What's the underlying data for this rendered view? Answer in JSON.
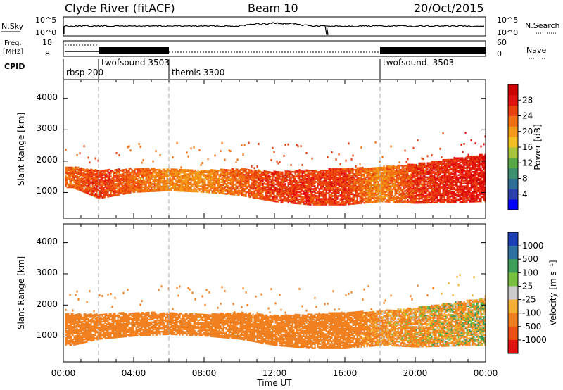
{
  "header": {
    "station": "Clyde River (fitACF)",
    "beam": "Beam 10",
    "date": "20/Oct/2015"
  },
  "strips": {
    "nsky_label": "N.Sky",
    "nsearch_label": "N.Search",
    "nsky_ticks": [
      "10^5",
      "10^0"
    ],
    "nsearch_ticks": [
      "10^5",
      "10^0"
    ],
    "freq_label_1": "Freq.",
    "freq_label_2": "[MHz]",
    "freq_ticks": [
      "18",
      "8"
    ],
    "nave_label": "Nave",
    "nave_ticks": [
      "60",
      "0"
    ],
    "cpid_label": "CPID",
    "cpid_modes": [
      {
        "label": "rbsp 200",
        "start_hour": 0
      },
      {
        "label": "twofsound 3503",
        "start_hour": 1.9
      },
      {
        "label": "themis 3300",
        "start_hour": 6.0
      },
      {
        "label": "twofsound -3503",
        "start_hour": 18.0
      }
    ]
  },
  "power_panel": {
    "ylabel": "Slant Range [km]",
    "yticks": [
      "1000",
      "2000",
      "3000",
      "4000"
    ],
    "colorbar_label": "Power [dB]",
    "colorbar_ticks": [
      "4",
      "8",
      "12",
      "16",
      "20",
      "24",
      "28"
    ],
    "colorbar_colors": [
      "#0000ff",
      "#2b3fb0",
      "#2f6c95",
      "#3e8f6f",
      "#5aa84a",
      "#a8c43a",
      "#f0c020",
      "#f39a18",
      "#f07012",
      "#ea4010",
      "#e01010",
      "#cc0000"
    ]
  },
  "velocity_panel": {
    "ylabel": "Slant Range [km]",
    "yticks": [
      "1000",
      "2000",
      "3000",
      "4000"
    ],
    "colorbar_label": "Velocity [m s⁻¹]",
    "colorbar_ticks": [
      "1000",
      "500",
      "100",
      "25",
      "-25",
      "-100",
      "-500",
      "-1000"
    ],
    "colorbar_colors": [
      "#1d3fb5",
      "#2f70a0",
      "#3f9d5a",
      "#7ac143",
      "#cccccc",
      "#f4b030",
      "#f08020",
      "#ee5010",
      "#e01010"
    ]
  },
  "x_axis": {
    "label": "Time UT",
    "ticks": [
      "00:00",
      "04:00",
      "08:00",
      "12:00",
      "16:00",
      "20:00",
      "00:00"
    ]
  },
  "chart_data": [
    {
      "type": "heatmap",
      "title": "",
      "xlabel": "Time UT",
      "ylabel": "Slant Range [km]",
      "xlim": [
        0,
        24
      ],
      "ylim": [
        180,
        4600
      ],
      "z_label": "Power [dB]",
      "z_range": [
        0,
        30
      ],
      "main_band": [
        {
          "t": 0.5,
          "lo": 1150,
          "hi": 1800,
          "z": 22
        },
        {
          "t": 2.0,
          "lo": 800,
          "hi": 1700,
          "z": 24
        },
        {
          "t": 4.0,
          "lo": 1000,
          "hi": 1750,
          "z": 22
        },
        {
          "t": 6.0,
          "lo": 1050,
          "hi": 1750,
          "z": 20
        },
        {
          "t": 8.0,
          "lo": 1000,
          "hi": 1700,
          "z": 20
        },
        {
          "t": 10.0,
          "lo": 900,
          "hi": 1750,
          "z": 22
        },
        {
          "t": 12.0,
          "lo": 700,
          "hi": 1650,
          "z": 24
        },
        {
          "t": 14.0,
          "lo": 600,
          "hi": 1700,
          "z": 24
        },
        {
          "t": 16.0,
          "lo": 600,
          "hi": 1750,
          "z": 24
        },
        {
          "t": 18.0,
          "lo": 700,
          "hi": 1800,
          "z": 20
        },
        {
          "t": 20.0,
          "lo": 650,
          "hi": 1900,
          "z": 24
        },
        {
          "t": 23.8,
          "lo": 700,
          "hi": 2200,
          "z": 26
        }
      ]
    },
    {
      "type": "heatmap",
      "title": "",
      "xlabel": "Time UT",
      "ylabel": "Slant Range [km]",
      "xlim": [
        0,
        24
      ],
      "ylim": [
        180,
        4600
      ],
      "z_label": "Velocity [m s⁻¹]",
      "z_range": [
        -1000,
        1000
      ],
      "main_band": [
        {
          "t": 0.5,
          "lo": 700,
          "hi": 1700,
          "z": -300
        },
        {
          "t": 2.0,
          "lo": 900,
          "hi": 1700,
          "z": -300
        },
        {
          "t": 4.0,
          "lo": 1000,
          "hi": 1750,
          "z": -300
        },
        {
          "t": 6.0,
          "lo": 1050,
          "hi": 1750,
          "z": -250
        },
        {
          "t": 8.0,
          "lo": 1000,
          "hi": 1700,
          "z": -250
        },
        {
          "t": 10.0,
          "lo": 900,
          "hi": 1750,
          "z": -300
        },
        {
          "t": 12.0,
          "lo": 700,
          "hi": 1650,
          "z": -350
        },
        {
          "t": 14.0,
          "lo": 600,
          "hi": 1700,
          "z": -300
        },
        {
          "t": 16.0,
          "lo": 600,
          "hi": 1750,
          "z": -300
        },
        {
          "t": 18.0,
          "lo": 700,
          "hi": 1800,
          "z": -150
        },
        {
          "t": 20.0,
          "lo": 650,
          "hi": 1900,
          "z": -120
        },
        {
          "t": 23.8,
          "lo": 700,
          "hi": 2200,
          "z": -60
        }
      ]
    }
  ]
}
